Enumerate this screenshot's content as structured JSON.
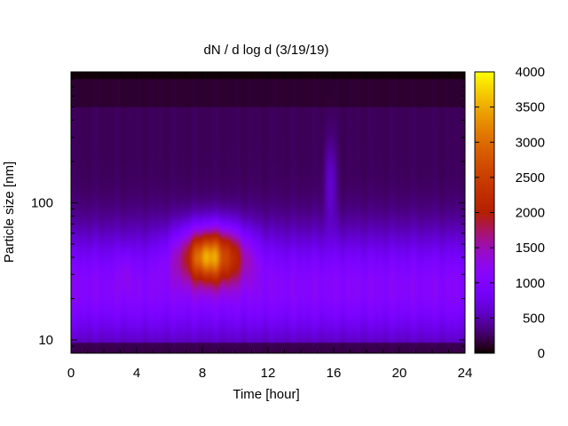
{
  "chart_data": {
    "type": "heatmap",
    "title": "dN / d log d (3/19/19)",
    "xlabel": "Time [hour]",
    "ylabel": "Particle size [nm]",
    "x_ticks": [
      "0",
      "4",
      "8",
      "12",
      "16",
      "20",
      "24"
    ],
    "y_ticks": [
      "10",
      "100"
    ],
    "y_scale": "log",
    "xlim": [
      0,
      24
    ],
    "ylim": [
      8,
      900
    ],
    "colorbar": {
      "ticks": [
        "0",
        "500",
        "1000",
        "1500",
        "2000",
        "2500",
        "3000",
        "3500",
        "4000"
      ],
      "range": [
        0,
        4000
      ],
      "colormap": "gnuplot-hot",
      "position": "right"
    },
    "grid": false,
    "hotspot": {
      "peak_value": 4000,
      "peak_time_hour": 8.2,
      "peak_size_nm": 40,
      "background_value": 1100
    }
  }
}
